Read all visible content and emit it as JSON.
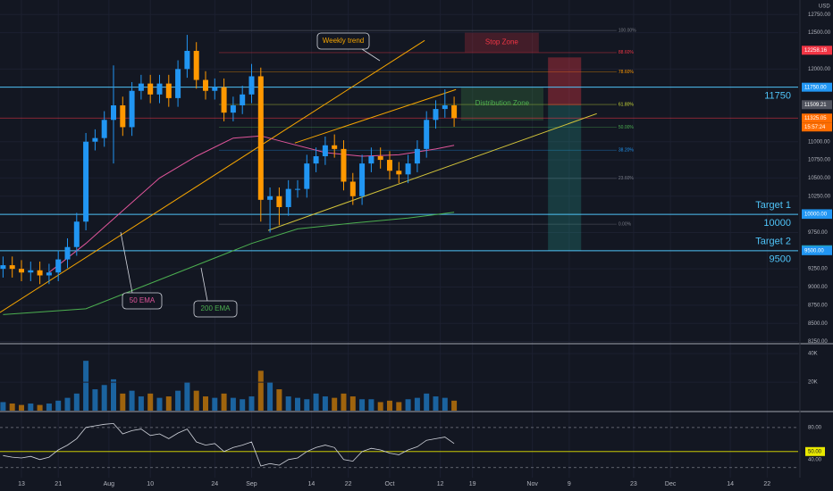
{
  "chart_data": {
    "type": "candlestick",
    "currency": "USD",
    "xlim": [
      -4.66,
      168.74
    ],
    "xticks": [
      {
        "value": 0,
        "label": "13"
      },
      {
        "value": 8,
        "label": "21"
      },
      {
        "value": 19,
        "label": "Aug"
      },
      {
        "value": 28,
        "label": "10"
      },
      {
        "value": 42,
        "label": "24"
      },
      {
        "value": 50,
        "label": "Sep"
      },
      {
        "value": 63,
        "label": "14"
      },
      {
        "value": 71,
        "label": "22"
      },
      {
        "value": 80,
        "label": "Oct"
      },
      {
        "value": 91,
        "label": "12"
      },
      {
        "value": 98,
        "label": "19"
      },
      {
        "value": 111,
        "label": "Nov"
      },
      {
        "value": 119,
        "label": "9"
      },
      {
        "value": 133,
        "label": "23"
      },
      {
        "value": 141,
        "label": "Dec"
      },
      {
        "value": 154,
        "label": "14"
      },
      {
        "value": 162,
        "label": "22"
      }
    ],
    "ylim": [
      8220,
      12950
    ],
    "yticks": [
      {
        "value": 8250,
        "label": "8250.00"
      },
      {
        "value": 8500,
        "label": "8500.00"
      },
      {
        "value": 8750,
        "label": "8750.00"
      },
      {
        "value": 9000,
        "label": "9000.00"
      },
      {
        "value": 9250,
        "label": "9250.00"
      },
      {
        "value": 9750,
        "label": "9750.00"
      },
      {
        "value": 10250,
        "label": "10250.00"
      },
      {
        "value": 10500,
        "label": "10500.00"
      },
      {
        "value": 10750,
        "label": "10750.00"
      },
      {
        "value": 11000,
        "label": "11000.00"
      },
      {
        "value": 12000,
        "label": "12000.00"
      },
      {
        "value": 12500,
        "label": "12500.00"
      },
      {
        "value": 12750,
        "label": "12750.00"
      }
    ],
    "up_color": "#2196f3",
    "down_color": "#ff9800",
    "candles": {
      "x": [
        -4,
        -2,
        0,
        2,
        4,
        6,
        8,
        10,
        12,
        14,
        16,
        18,
        20,
        22,
        24,
        26,
        28,
        30,
        32,
        34,
        36,
        38,
        40,
        42,
        44,
        46,
        48,
        50,
        52,
        54,
        56,
        58,
        60,
        62,
        64,
        66,
        68,
        70,
        72,
        74,
        76,
        78,
        80,
        82,
        84,
        86,
        88,
        90,
        92,
        94
      ],
      "open": [
        9250,
        9300,
        9250,
        9200,
        9230,
        9160,
        9200,
        9380,
        9550,
        9900,
        11000,
        11050,
        11300,
        11500,
        11200,
        11700,
        11800,
        11650,
        11800,
        11600,
        12000,
        12250,
        11850,
        11700,
        11750,
        11400,
        11500,
        11650,
        11900,
        10200,
        10250,
        10100,
        10350,
        10350,
        10700,
        10800,
        10950,
        10900,
        10450,
        10250,
        10700,
        10800,
        10750,
        10600,
        10550,
        10700,
        10900,
        11300,
        11450,
        11500
      ],
      "high": [
        9420,
        9420,
        9370,
        9350,
        9350,
        9320,
        9500,
        9670,
        10020,
        11120,
        11170,
        11420,
        12050,
        11620,
        11820,
        11920,
        11920,
        11920,
        11920,
        12120,
        12470,
        12370,
        11970,
        11870,
        11870,
        11620,
        11770,
        12070,
        12020,
        10370,
        10370,
        10470,
        10470,
        10820,
        10920,
        11070,
        11100,
        11020,
        10570,
        10820,
        10920,
        10920,
        10870,
        10720,
        10820,
        11020,
        11420,
        11570,
        11720,
        11620
      ],
      "low": [
        9130,
        9130,
        9080,
        9080,
        9040,
        9040,
        9080,
        9260,
        9430,
        9780,
        10880,
        10930,
        10700,
        11080,
        11080,
        11580,
        11530,
        11530,
        11480,
        11480,
        11880,
        11730,
        11580,
        11580,
        11280,
        11280,
        11380,
        11530,
        9900,
        9750,
        9850,
        9980,
        10230,
        10230,
        10580,
        10680,
        10780,
        10330,
        10130,
        10130,
        10580,
        10630,
        10480,
        10430,
        10430,
        10580,
        10780,
        11180,
        11330,
        11205
      ],
      "close": [
        9300,
        9250,
        9200,
        9230,
        9160,
        9200,
        9380,
        9550,
        9900,
        11000,
        11050,
        11300,
        11500,
        11200,
        11700,
        11800,
        11650,
        11800,
        11600,
        12000,
        12250,
        11850,
        11700,
        11750,
        11400,
        11500,
        11650,
        11900,
        10200,
        10250,
        10100,
        10350,
        10350,
        10700,
        10800,
        10950,
        10900,
        10450,
        10250,
        10700,
        10800,
        10750,
        10600,
        10550,
        10700,
        10900,
        11300,
        11450,
        11500,
        11325
      ]
    },
    "ema": [
      {
        "name": "50 EMA",
        "color": "#e0559a",
        "x": [
          6,
          14,
          22,
          30,
          38,
          46,
          52,
          58,
          66,
          74,
          82,
          90,
          94
        ],
        "values": [
          9200,
          9600,
          10050,
          10500,
          10800,
          11050,
          11080,
          10980,
          10850,
          10800,
          10820,
          10900,
          10950
        ]
      },
      {
        "name": "200 EMA",
        "color": "#4caf50",
        "x": [
          -4,
          14,
          30,
          42,
          50,
          60,
          72,
          84,
          94
        ],
        "values": [
          8620,
          8700,
          9100,
          9400,
          9600,
          9800,
          9880,
          9950,
          10030
        ]
      }
    ],
    "levels": [
      {
        "value": 11750,
        "label": "11750"
      },
      {
        "value": 10000,
        "name": "Target 1",
        "label": "10000"
      },
      {
        "value": 9500,
        "name": "Target 2",
        "label": "9500"
      }
    ],
    "level_color": "#4fc3f7",
    "price_labels": [
      {
        "value": 12258.16,
        "color": "#f23645"
      },
      {
        "value": 11750,
        "label": "11750.00",
        "color": "#2196f3"
      },
      {
        "value": 11509.21,
        "color": "#50535e"
      },
      {
        "value": 11325.05,
        "color": "#ff6d00",
        "line": true
      },
      {
        "value": 10008.18,
        "color": "#2196f3"
      },
      {
        "value": 10000,
        "label": "10000.00",
        "color": "#2196f3"
      },
      {
        "value": 9512.99,
        "color": "#2196f3"
      },
      {
        "value": 9508.86,
        "color": "#26a69a"
      },
      {
        "value": 9500,
        "label": "9500.00",
        "color": "#2196f3"
      }
    ],
    "countdown": "15:57:24",
    "fib": {
      "low": 9865,
      "high": 12530,
      "x": [
        42.9,
        129.3
      ],
      "levels": [
        {
          "value": 100,
          "label": "100.00%",
          "color": "#787b86"
        },
        {
          "value": 88.6,
          "label": "88.60%",
          "color": "#f23645"
        },
        {
          "value": 78.6,
          "label": "78.60%",
          "color": "#ff9800"
        },
        {
          "value": 61.8,
          "label": "61.80%",
          "color": "#cddc39"
        },
        {
          "value": 50,
          "label": "50.00%",
          "color": "#4caf50"
        },
        {
          "value": 38.2,
          "label": "38.20%",
          "color": "#2196f3"
        },
        {
          "value": 23.6,
          "label": "23.60%",
          "color": "#787b86"
        },
        {
          "value": 0,
          "label": "0.00%",
          "color": "#787b86"
        }
      ]
    },
    "zones": [
      {
        "name": "Stop Zone",
        "color": "#f23645",
        "x": [
          96.3,
          112.4
        ],
        "y": [
          12230,
          12500
        ]
      },
      {
        "name": "Distribution Zone",
        "color": "#4caf50",
        "x": [
          95.5,
          113.4
        ],
        "y": [
          11290,
          11750
        ]
      }
    ],
    "position": {
      "x": [
        114.4,
        121.6
      ],
      "entry": 11500,
      "stop": 12160,
      "target": 9500
    },
    "trendlines": [
      {
        "name": "Weekly trend",
        "color": "#f7a600",
        "x": [
          -4.66,
          87.6
        ],
        "y": [
          8650,
          12393
        ]
      },
      {
        "color": "#f7a600",
        "x": [
          59.4,
          94.4
        ],
        "y": [
          10982,
          11718
        ]
      },
      {
        "color": "#d4c53a",
        "x": [
          53.6,
          125
        ],
        "y": [
          9779,
          11386
        ]
      }
    ],
    "volume": {
      "values": [
        6,
        5,
        4,
        5,
        4,
        5,
        7,
        9,
        12,
        35,
        15,
        18,
        22,
        12,
        14,
        10,
        12,
        9,
        10,
        14,
        20,
        14,
        10,
        9,
        12,
        9,
        8,
        10,
        28,
        20,
        15,
        10,
        9,
        8,
        12,
        10,
        9,
        12,
        10,
        8,
        8,
        6,
        7,
        6,
        8,
        9,
        12,
        10,
        9,
        7
      ],
      "ylim": [
        0,
        47
      ],
      "yticks": [
        {
          "value": 20,
          "label": "20K"
        },
        {
          "value": 40,
          "label": "40K"
        }
      ]
    },
    "rsi": {
      "values": [
        45,
        43,
        42,
        44,
        40,
        43,
        52,
        58,
        66,
        80,
        82,
        84,
        85,
        72,
        76,
        78,
        70,
        72,
        66,
        73,
        78,
        62,
        58,
        60,
        50,
        55,
        58,
        62,
        32,
        35,
        33,
        40,
        42,
        50,
        55,
        58,
        55,
        40,
        38,
        50,
        54,
        52,
        48,
        46,
        52,
        56,
        64,
        66,
        68,
        60
      ],
      "ylim": [
        17.5,
        98.75
      ],
      "yticks": [
        {
          "value": 40,
          "label": "40.00"
        },
        {
          "value": 50,
          "label": "50.00"
        },
        {
          "value": 80,
          "label": "80.00"
        }
      ],
      "levels": [
        {
          "value": 80,
          "style": "dashed",
          "color": "#787b86"
        },
        {
          "value": 50,
          "style": "solid",
          "color": "#e8e800"
        },
        {
          "value": 30,
          "style": "dashed",
          "color": "#787b86"
        }
      ]
    }
  }
}
